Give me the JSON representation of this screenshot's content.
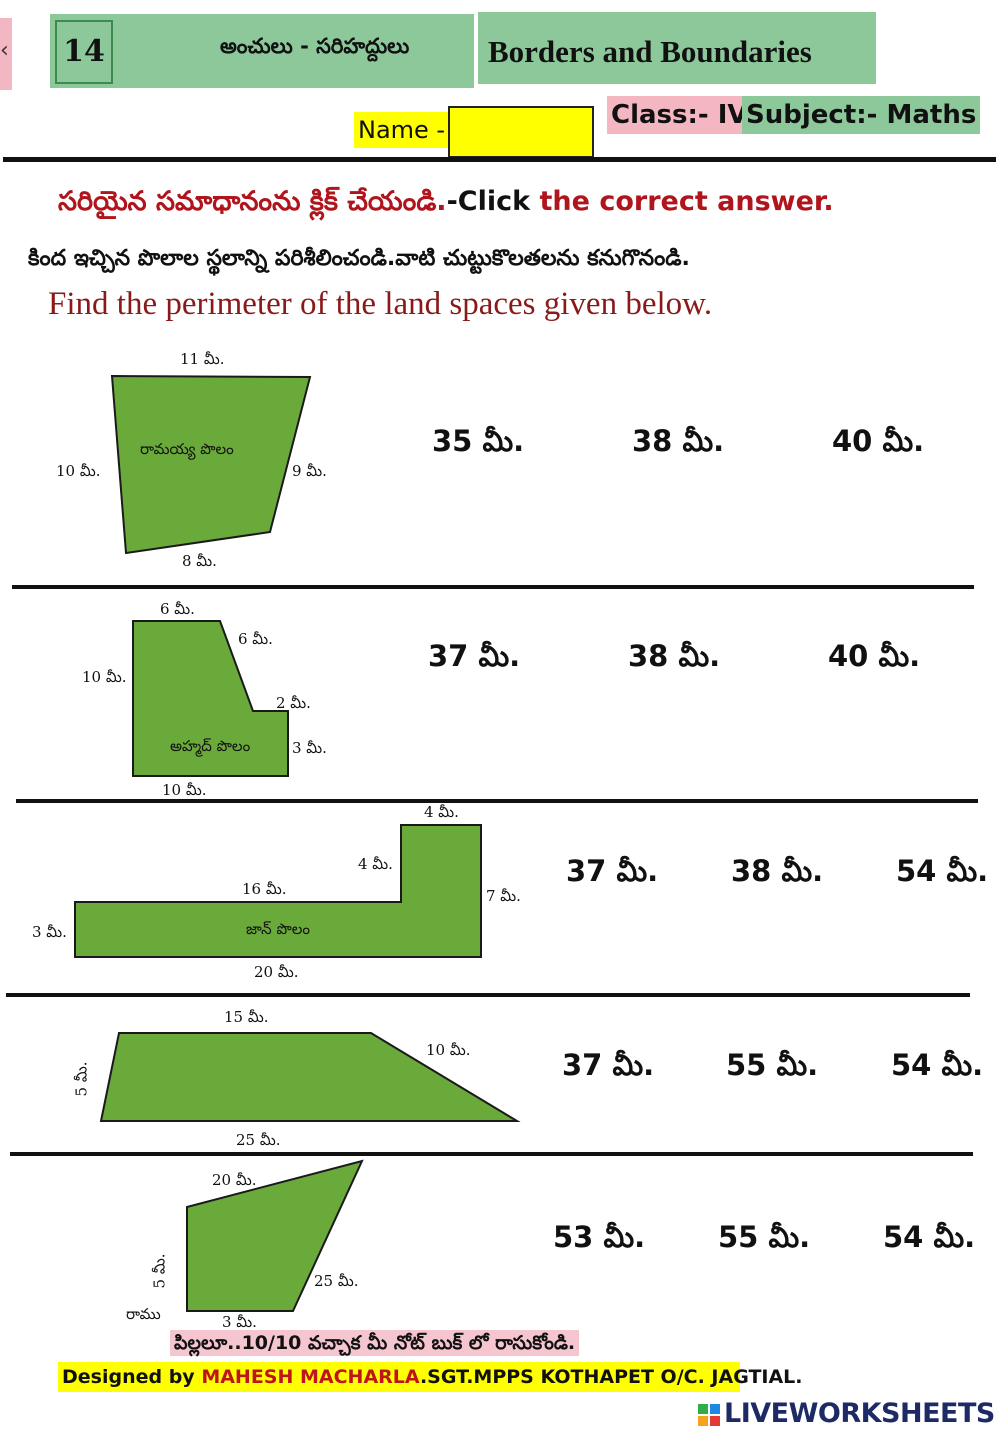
{
  "header": {
    "number": "14",
    "telugu_title": "అంచులు - సరిహద్దులు",
    "english_title": "Borders and Boundaries",
    "name_label": "Name -",
    "class_label": "Class:- IV",
    "subject_label": "Subject:- Maths"
  },
  "instructions": {
    "line1_te": "సరియైన సమాధానంను క్లిక్ చేయండి.",
    "line1_en_prefix": "-Click",
    "line1_en_rest": " the correct answer.",
    "line2_te": "కింద ఇచ్చిన పొలాల స్థలాన్ని పరిశీలించండి.వాటి చుట్టుకొలతలను కనుగొనండి.",
    "line3_en": "Find the perimeter of the land spaces given below."
  },
  "questions": [
    {
      "field_label": "రామయ్య పొలం",
      "dims": [
        "11 మీ.",
        "10 మీ.",
        "9 మీ.",
        "8 మీ."
      ],
      "options": [
        "35 మీ.",
        "38 మీ.",
        "40 మీ."
      ]
    },
    {
      "field_label": "అహ్మద్ పొలం",
      "dims": [
        "6 మీ.",
        "6 మీ.",
        "10 మీ.",
        "2 మీ.",
        "3 మీ.",
        "10 మీ."
      ],
      "options": [
        "37 మీ.",
        "38 మీ.",
        "40 మీ."
      ]
    },
    {
      "field_label": "జాన్ పొలం",
      "dims": [
        "4 మీ.",
        "4 మీ.",
        "16 మీ.",
        "7 మీ.",
        "3 మీ.",
        "20 మీ."
      ],
      "options": [
        "37 మీ.",
        "38 మీ.",
        "54 మీ."
      ]
    },
    {
      "field_label": "",
      "dims": [
        "15 మీ.",
        "10 మీ.",
        "5 మీ.",
        "25 మీ."
      ],
      "options": [
        "37 మీ.",
        "55 మీ.",
        "54 మీ."
      ]
    },
    {
      "field_label": "రాము",
      "dims": [
        "20 మీ.",
        "5 మీ.",
        "25 మీ.",
        "3 మీ."
      ],
      "options": [
        "53 మీ.",
        "55 మీ.",
        "54 మీ."
      ]
    }
  ],
  "footer": {
    "note_te": "పిల్లలూ..10/10 వచ్చాక మీ నోట్ బుక్ లో రాసుకోండి.",
    "credit_prefix": "Designed by ",
    "credit_name": "MAHESH MACHARLA",
    "credit_rest": ".SGT.MPPS KOTHAPET O/C. JAGTIAL.",
    "brand": "LIVEWORKSHEETS"
  },
  "colors": {
    "field_fill": "#6aaa3a",
    "header_green": "#8cc89a",
    "highlight_yellow": "#ffff00",
    "highlight_pink": "#f4b6c0",
    "instruction_red": "#b0141c"
  }
}
